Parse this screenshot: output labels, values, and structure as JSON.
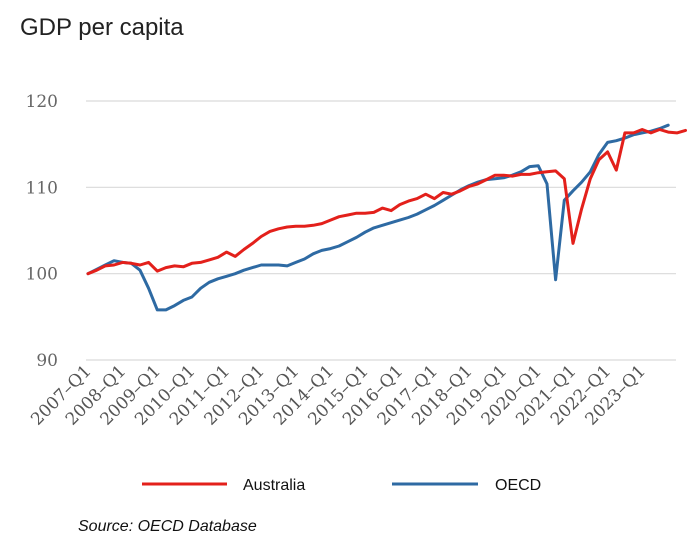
{
  "chart_data": {
    "type": "line",
    "title": "GDP per capita",
    "xlabel": "",
    "ylabel": "",
    "ylim": [
      90,
      120
    ],
    "yticks": [
      90,
      100,
      110,
      120
    ],
    "xticks": [
      "2007-Q1",
      "2008-Q1",
      "2009-Q1",
      "2010-Q1",
      "2011-Q1",
      "2012-Q1",
      "2013-Q1",
      "2014-Q1",
      "2015-Q1",
      "2016-Q1",
      "2017-Q1",
      "2018-Q1",
      "2019-Q1",
      "2020-Q1",
      "2021-Q1",
      "2022-Q1",
      "2023-Q1"
    ],
    "x_start": "2007-Q1",
    "period": "quarter",
    "series": [
      {
        "name": "Australia",
        "color": "#e3201b",
        "values": [
          100.0,
          100.4,
          100.9,
          101.0,
          101.3,
          101.2,
          101.0,
          101.3,
          100.3,
          100.7,
          100.9,
          100.8,
          101.2,
          101.3,
          101.6,
          101.9,
          102.5,
          102.0,
          102.8,
          103.5,
          104.3,
          104.9,
          105.2,
          105.4,
          105.5,
          105.5,
          105.6,
          105.8,
          106.2,
          106.6,
          106.8,
          107.0,
          107.0,
          107.1,
          107.6,
          107.3,
          108.0,
          108.4,
          108.7,
          109.2,
          108.7,
          109.4,
          109.2,
          109.6,
          110.1,
          110.4,
          110.9,
          111.4,
          111.4,
          111.3,
          111.5,
          111.5,
          111.7,
          111.8,
          111.9,
          111.0,
          103.5,
          107.5,
          111.0,
          113.2,
          114.1,
          112.0,
          116.3,
          116.3,
          116.7,
          116.3,
          116.7,
          116.4,
          116.3,
          116.6
        ]
      },
      {
        "name": "OECD",
        "color": "#2e6aa3",
        "values": [
          100.0,
          100.5,
          101.0,
          101.5,
          101.3,
          101.2,
          100.4,
          98.3,
          95.8,
          95.8,
          96.3,
          96.9,
          97.3,
          98.3,
          99.0,
          99.4,
          99.7,
          100.0,
          100.4,
          100.7,
          101.0,
          101.0,
          101.0,
          100.9,
          101.3,
          101.7,
          102.3,
          102.7,
          102.9,
          103.2,
          103.7,
          104.2,
          104.8,
          105.3,
          105.6,
          105.9,
          106.2,
          106.5,
          106.9,
          107.4,
          107.9,
          108.5,
          109.1,
          109.7,
          110.2,
          110.6,
          110.9,
          111.0,
          111.1,
          111.4,
          111.8,
          112.4,
          112.5,
          110.4,
          99.3,
          108.5,
          109.6,
          110.6,
          111.8,
          113.8,
          115.2,
          115.4,
          115.7,
          116.1,
          116.3,
          116.5,
          116.8,
          117.2
        ]
      }
    ],
    "legend": {
      "position": "bottom"
    },
    "grid": true
  },
  "source": "Source: OECD Database"
}
